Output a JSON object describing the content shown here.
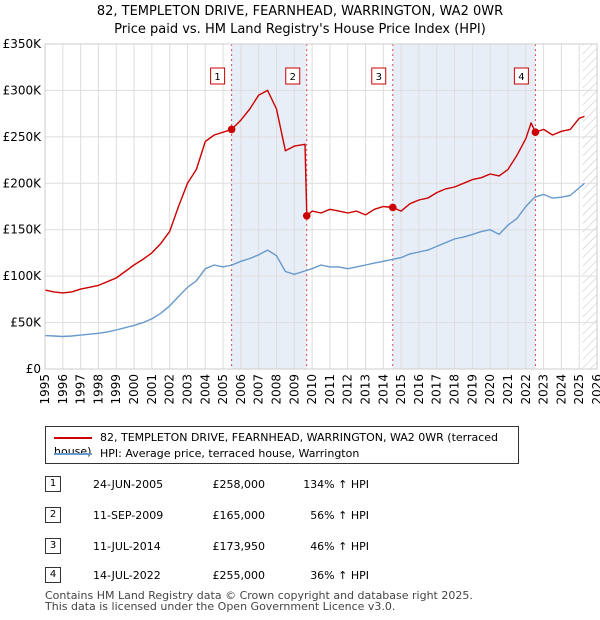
{
  "title_line1": "82, TEMPLETON DRIVE, FEARNHEAD, WARRINGTON, WA2 0WR",
  "title_line2": "Price paid vs. HM Land Registry's House Price Index (HPI)",
  "legend": {
    "red_label": "82, TEMPLETON DRIVE, FEARNHEAD, WARRINGTON, WA2 0WR (terraced house)",
    "blue_label": "HPI: Average price, terraced house, Warrington"
  },
  "transactions": [
    {
      "num": "1",
      "date": "24-JUN-2005",
      "price": "£258,000",
      "hpi": "134% ↑ HPI"
    },
    {
      "num": "2",
      "date": "11-SEP-2009",
      "price": "£165,000",
      "hpi": "56% ↑ HPI"
    },
    {
      "num": "3",
      "date": "11-JUL-2014",
      "price": "£173,950",
      "hpi": "46% ↑ HPI"
    },
    {
      "num": "4",
      "date": "14-JUL-2022",
      "price": "£255,000",
      "hpi": "36% ↑ HPI"
    }
  ],
  "footer": {
    "line1": "Contains HM Land Registry data © Crown copyright and database right 2025.",
    "line2": "This data is licensed under the Open Government Licence v3.0."
  },
  "colors": {
    "property": "#cc0000",
    "hpi": "#6699cc",
    "shade": "#e8eef8",
    "grid": "#dddddd"
  },
  "chart_data": {
    "type": "line",
    "title": "82, TEMPLETON DRIVE, FEARNHEAD, WARRINGTON, WA2 0WR",
    "subtitle": "Price paid vs. HM Land Registry's House Price Index (HPI)",
    "xlabel": "",
    "ylabel": "",
    "xlim": [
      1995,
      2026
    ],
    "ylim": [
      0,
      350000
    ],
    "y_ticks": [
      {
        "value": 0,
        "label": "£0"
      },
      {
        "value": 50000,
        "label": "£50K"
      },
      {
        "value": 100000,
        "label": "£100K"
      },
      {
        "value": 150000,
        "label": "£150K"
      },
      {
        "value": 200000,
        "label": "£200K"
      },
      {
        "value": 250000,
        "label": "£250K"
      },
      {
        "value": 300000,
        "label": "£300K"
      },
      {
        "value": 350000,
        "label": "£350K"
      }
    ],
    "x_ticks": [
      "1995",
      "1996",
      "1997",
      "1998",
      "1999",
      "2000",
      "2001",
      "2002",
      "2003",
      "2004",
      "2005",
      "2006",
      "2007",
      "2008",
      "2009",
      "2010",
      "2011",
      "2012",
      "2013",
      "2014",
      "2015",
      "2016",
      "2017",
      "2018",
      "2019",
      "2020",
      "2021",
      "2022",
      "2023",
      "2024",
      "2025",
      "2026"
    ],
    "shaded_ranges": [
      [
        2005.48,
        2009.7
      ],
      [
        2014.53,
        2022.54
      ]
    ],
    "future_hatch_from": 2025.2,
    "sales": [
      {
        "label": "1",
        "x": 2005.48,
        "y": 258000
      },
      {
        "label": "2",
        "x": 2009.7,
        "y": 165000
      },
      {
        "label": "3",
        "x": 2014.53,
        "y": 173950
      },
      {
        "label": "4",
        "x": 2022.54,
        "y": 255000
      }
    ],
    "series": [
      {
        "name": "82, TEMPLETON DRIVE, FEARNHEAD, WARRINGTON, WA2 0WR (terraced house)",
        "color": "#cc0000",
        "x": [
          1995,
          1995.5,
          1996,
          1996.5,
          1997,
          1997.5,
          1998,
          1998.5,
          1999,
          1999.5,
          2000,
          2000.5,
          2001,
          2001.5,
          2002,
          2002.5,
          2003,
          2003.5,
          2004,
          2004.5,
          2005,
          2005.48,
          2006,
          2006.5,
          2007,
          2007.5,
          2008,
          2008.5,
          2009,
          2009.6,
          2009.7,
          2010,
          2010.5,
          2011,
          2011.5,
          2012,
          2012.5,
          2013,
          2013.5,
          2014,
          2014.53,
          2015,
          2015.5,
          2016,
          2016.5,
          2017,
          2017.5,
          2018,
          2018.5,
          2019,
          2019.5,
          2020,
          2020.5,
          2021,
          2021.5,
          2022,
          2022.3,
          2022.54,
          2023,
          2023.5,
          2024,
          2024.5,
          2025,
          2025.3
        ],
        "y": [
          85000,
          83000,
          82000,
          83000,
          86000,
          88000,
          90000,
          94000,
          98000,
          105000,
          112000,
          118000,
          125000,
          135000,
          148000,
          175000,
          200000,
          215000,
          245000,
          252000,
          255000,
          258000,
          268000,
          280000,
          295000,
          300000,
          280000,
          235000,
          240000,
          242000,
          165000,
          170000,
          168000,
          172000,
          170000,
          168000,
          170000,
          166000,
          172000,
          175000,
          173950,
          170000,
          178000,
          182000,
          184000,
          190000,
          194000,
          196000,
          200000,
          204000,
          206000,
          210000,
          208000,
          215000,
          230000,
          248000,
          265000,
          255000,
          258000,
          252000,
          256000,
          258000,
          270000,
          272000
        ]
      },
      {
        "name": "HPI: Average price, terraced house, Warrington",
        "color": "#6699cc",
        "x": [
          1995,
          1995.5,
          1996,
          1996.5,
          1997,
          1997.5,
          1998,
          1998.5,
          1999,
          1999.5,
          2000,
          2000.5,
          2001,
          2001.5,
          2002,
          2002.5,
          2003,
          2003.5,
          2004,
          2004.5,
          2005,
          2005.5,
          2006,
          2006.5,
          2007,
          2007.5,
          2008,
          2008.5,
          2009,
          2009.5,
          2010,
          2010.5,
          2011,
          2011.5,
          2012,
          2012.5,
          2013,
          2013.5,
          2014,
          2014.5,
          2015,
          2015.5,
          2016,
          2016.5,
          2017,
          2017.5,
          2018,
          2018.5,
          2019,
          2019.5,
          2020,
          2020.5,
          2021,
          2021.5,
          2022,
          2022.5,
          2023,
          2023.5,
          2024,
          2024.5,
          2025,
          2025.3
        ],
        "y": [
          36000,
          35500,
          35000,
          35500,
          36500,
          37500,
          38500,
          40000,
          42000,
          44500,
          47000,
          50000,
          54000,
          60000,
          68000,
          78000,
          88000,
          95000,
          108000,
          112000,
          110000,
          112000,
          116000,
          119000,
          123000,
          128000,
          122000,
          105000,
          102000,
          105000,
          108000,
          112000,
          110000,
          110000,
          108000,
          110000,
          112000,
          114000,
          116000,
          118000,
          120000,
          124000,
          126000,
          128000,
          132000,
          136000,
          140000,
          142000,
          145000,
          148000,
          150000,
          145000,
          155000,
          162000,
          175000,
          185000,
          188000,
          184000,
          185000,
          187000,
          195000,
          200000
        ]
      }
    ]
  }
}
